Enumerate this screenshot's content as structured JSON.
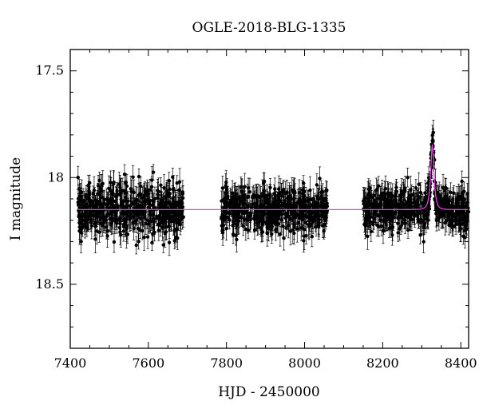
{
  "chart_data": {
    "type": "scatter",
    "title": "OGLE-2018-BLG-1335",
    "xlabel": "HJD - 2450000",
    "ylabel": "I magnitude",
    "xlim": [
      7400,
      8420
    ],
    "ylim": [
      18.8,
      17.4
    ],
    "y_inverted": true,
    "grid": false,
    "legend": "none",
    "x_ticks": [
      {
        "value": 7400,
        "label": "7400"
      },
      {
        "value": 7600,
        "label": "7600"
      },
      {
        "value": 7800,
        "label": "7800"
      },
      {
        "value": 8000,
        "label": "8000"
      },
      {
        "value": 8200,
        "label": "8200"
      },
      {
        "value": 8400,
        "label": "8400"
      }
    ],
    "y_ticks": [
      {
        "value": 17.5,
        "label": "17.5"
      },
      {
        "value": 18.0,
        "label": "18"
      },
      {
        "value": 18.5,
        "label": "18.5"
      }
    ],
    "seasons": [
      {
        "x_start": 7420,
        "x_end": 7690,
        "mean_mag": 18.15,
        "scatter": 0.06,
        "typical_error": 0.05
      },
      {
        "x_start": 7785,
        "x_end": 8058,
        "mean_mag": 18.15,
        "scatter": 0.05,
        "typical_error": 0.05
      },
      {
        "x_start": 8150,
        "x_end": 8420,
        "mean_mag": 18.15,
        "scatter": 0.05,
        "typical_error": 0.05
      }
    ],
    "model": {
      "name": "microlensing model",
      "baseline_mag": 18.15,
      "peak_x": 8327,
      "peak_mag": 17.85,
      "timescale_days": 8,
      "color": "#e040e0"
    },
    "point_color": "#000000"
  }
}
